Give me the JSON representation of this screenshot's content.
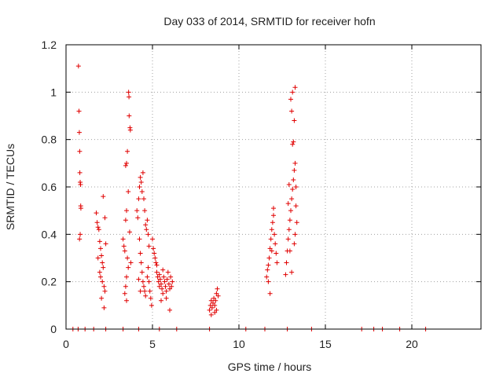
{
  "chart_data": {
    "type": "scatter",
    "title": "Day 033 of 2014, SRMTID for receiver hofn",
    "xlabel": "GPS time / hours",
    "ylabel": "SRMTID / TECUs",
    "xlim": [
      0,
      24
    ],
    "ylim": [
      0,
      1.2
    ],
    "xticks": [
      0,
      5,
      10,
      15,
      20
    ],
    "xtick_labels": [
      "0",
      "5",
      "10",
      "15",
      "20"
    ],
    "yticks": [
      0,
      0.2,
      0.4,
      0.6,
      0.8,
      1.0,
      1.2
    ],
    "ytick_labels": [
      "0",
      "0.2",
      "0.4",
      "0.6",
      "0.8",
      "1",
      "1.2"
    ],
    "grid": true,
    "marker": "+",
    "color": "#e00000",
    "series": [
      {
        "name": "SRMTID",
        "points": [
          [
            0.4,
            0
          ],
          [
            0.7,
            0
          ],
          [
            1.1,
            0
          ],
          [
            1.6,
            0
          ],
          [
            2.3,
            0
          ],
          [
            3.3,
            0
          ],
          [
            4.2,
            0
          ],
          [
            5.4,
            0
          ],
          [
            6.4,
            0
          ],
          [
            8.3,
            0
          ],
          [
            10.4,
            0
          ],
          [
            11.5,
            0
          ],
          [
            12.8,
            0
          ],
          [
            14.2,
            0
          ],
          [
            17.1,
            0
          ],
          [
            17.8,
            0
          ],
          [
            18.3,
            0
          ],
          [
            19.3,
            0
          ],
          [
            20.8,
            0
          ],
          [
            0.72,
            1.11
          ],
          [
            0.75,
            0.92
          ],
          [
            0.77,
            0.83
          ],
          [
            0.79,
            0.75
          ],
          [
            0.8,
            0.66
          ],
          [
            0.82,
            0.62
          ],
          [
            0.84,
            0.61
          ],
          [
            0.85,
            0.52
          ],
          [
            0.86,
            0.51
          ],
          [
            0.82,
            0.4
          ],
          [
            0.78,
            0.38
          ],
          [
            1.75,
            0.49
          ],
          [
            1.8,
            0.45
          ],
          [
            1.85,
            0.43
          ],
          [
            1.9,
            0.42
          ],
          [
            1.95,
            0.37
          ],
          [
            2.0,
            0.34
          ],
          [
            2.05,
            0.31
          ],
          [
            2.1,
            0.28
          ],
          [
            2.15,
            0.26
          ],
          [
            2.0,
            0.22
          ],
          [
            2.1,
            0.2
          ],
          [
            2.2,
            0.18
          ],
          [
            2.25,
            0.16
          ],
          [
            2.15,
            0.56
          ],
          [
            2.25,
            0.47
          ],
          [
            2.05,
            0.13
          ],
          [
            2.2,
            0.09
          ],
          [
            1.95,
            0.24
          ],
          [
            2.3,
            0.36
          ],
          [
            1.85,
            0.3
          ],
          [
            3.3,
            0.38
          ],
          [
            3.35,
            0.35
          ],
          [
            3.4,
            0.33
          ],
          [
            3.45,
            0.69
          ],
          [
            3.5,
            0.7
          ],
          [
            3.55,
            0.75
          ],
          [
            3.6,
            0.58
          ],
          [
            3.5,
            0.5
          ],
          [
            3.45,
            0.46
          ],
          [
            3.55,
            0.3
          ],
          [
            3.6,
            0.26
          ],
          [
            3.5,
            0.22
          ],
          [
            3.45,
            0.18
          ],
          [
            3.4,
            0.15
          ],
          [
            3.5,
            0.12
          ],
          [
            3.65,
            0.9
          ],
          [
            3.62,
            1.0
          ],
          [
            3.64,
            0.98
          ],
          [
            3.7,
            0.85
          ],
          [
            3.72,
            0.84
          ],
          [
            3.68,
            0.41
          ],
          [
            3.75,
            0.28
          ],
          [
            4.1,
            0.5
          ],
          [
            4.15,
            0.47
          ],
          [
            4.2,
            0.55
          ],
          [
            4.25,
            0.6
          ],
          [
            4.3,
            0.64
          ],
          [
            4.35,
            0.62
          ],
          [
            4.4,
            0.58
          ],
          [
            4.45,
            0.66
          ],
          [
            4.5,
            0.55
          ],
          [
            4.55,
            0.5
          ],
          [
            4.6,
            0.44
          ],
          [
            4.65,
            0.42
          ],
          [
            4.7,
            0.46
          ],
          [
            4.75,
            0.4
          ],
          [
            4.8,
            0.35
          ],
          [
            4.25,
            0.38
          ],
          [
            4.3,
            0.32
          ],
          [
            4.35,
            0.28
          ],
          [
            4.4,
            0.24
          ],
          [
            4.45,
            0.2
          ],
          [
            4.5,
            0.18
          ],
          [
            4.55,
            0.16
          ],
          [
            4.6,
            0.14
          ],
          [
            4.7,
            0.22
          ],
          [
            4.75,
            0.26
          ],
          [
            4.8,
            0.2
          ],
          [
            4.85,
            0.16
          ],
          [
            4.9,
            0.13
          ],
          [
            4.95,
            0.1
          ],
          [
            4.2,
            0.21
          ],
          [
            4.3,
            0.16
          ],
          [
            5.0,
            0.38
          ],
          [
            5.05,
            0.34
          ],
          [
            5.1,
            0.32
          ],
          [
            5.15,
            0.3
          ],
          [
            5.2,
            0.28
          ],
          [
            5.25,
            0.24
          ],
          [
            5.3,
            0.22
          ],
          [
            5.35,
            0.2
          ],
          [
            5.4,
            0.18
          ],
          [
            5.45,
            0.21
          ],
          [
            5.5,
            0.19
          ],
          [
            5.55,
            0.17
          ],
          [
            5.6,
            0.15
          ],
          [
            5.65,
            0.22
          ],
          [
            5.7,
            0.2
          ],
          [
            5.75,
            0.18
          ],
          [
            5.8,
            0.16
          ],
          [
            5.85,
            0.21
          ],
          [
            5.9,
            0.24
          ],
          [
            5.95,
            0.19
          ],
          [
            6.0,
            0.17
          ],
          [
            6.05,
            0.22
          ],
          [
            6.1,
            0.18
          ],
          [
            6.15,
            0.2
          ],
          [
            5.25,
            0.27
          ],
          [
            5.4,
            0.23
          ],
          [
            5.6,
            0.25
          ],
          [
            5.8,
            0.13
          ],
          [
            6.0,
            0.08
          ],
          [
            5.5,
            0.12
          ],
          [
            8.3,
            0.08
          ],
          [
            8.35,
            0.1
          ],
          [
            8.4,
            0.12
          ],
          [
            8.45,
            0.09
          ],
          [
            8.5,
            0.11
          ],
          [
            8.55,
            0.13
          ],
          [
            8.6,
            0.1
          ],
          [
            8.65,
            0.12
          ],
          [
            8.7,
            0.15
          ],
          [
            8.75,
            0.17
          ],
          [
            8.8,
            0.14
          ],
          [
            8.4,
            0.06
          ],
          [
            8.6,
            0.07
          ],
          [
            8.7,
            0.08
          ],
          [
            11.6,
            0.22
          ],
          [
            11.65,
            0.25
          ],
          [
            11.7,
            0.27
          ],
          [
            11.75,
            0.3
          ],
          [
            11.8,
            0.34
          ],
          [
            11.85,
            0.38
          ],
          [
            11.9,
            0.42
          ],
          [
            11.95,
            0.45
          ],
          [
            12.0,
            0.48
          ],
          [
            12.05,
            0.4
          ],
          [
            12.1,
            0.36
          ],
          [
            12.15,
            0.32
          ],
          [
            11.7,
            0.2
          ],
          [
            11.8,
            0.15
          ],
          [
            12.2,
            0.28
          ],
          [
            12.0,
            0.51
          ],
          [
            11.9,
            0.33
          ],
          [
            12.7,
            0.23
          ],
          [
            12.75,
            0.28
          ],
          [
            12.8,
            0.33
          ],
          [
            12.85,
            0.38
          ],
          [
            12.9,
            0.42
          ],
          [
            12.95,
            0.46
          ],
          [
            13.0,
            0.5
          ],
          [
            13.05,
            0.55
          ],
          [
            13.1,
            0.59
          ],
          [
            13.15,
            0.63
          ],
          [
            13.2,
            0.67
          ],
          [
            13.25,
            0.7
          ],
          [
            13.1,
            0.78
          ],
          [
            13.15,
            0.79
          ],
          [
            13.2,
            0.88
          ],
          [
            13.05,
            0.92
          ],
          [
            13.0,
            0.97
          ],
          [
            13.1,
            1.0
          ],
          [
            13.25,
            1.02
          ],
          [
            13.3,
            0.52
          ],
          [
            13.35,
            0.45
          ],
          [
            12.9,
            0.61
          ],
          [
            12.95,
            0.33
          ],
          [
            13.2,
            0.36
          ],
          [
            13.3,
            0.6
          ],
          [
            12.85,
            0.53
          ],
          [
            13.05,
            0.24
          ],
          [
            13.25,
            0.4
          ]
        ]
      }
    ]
  }
}
